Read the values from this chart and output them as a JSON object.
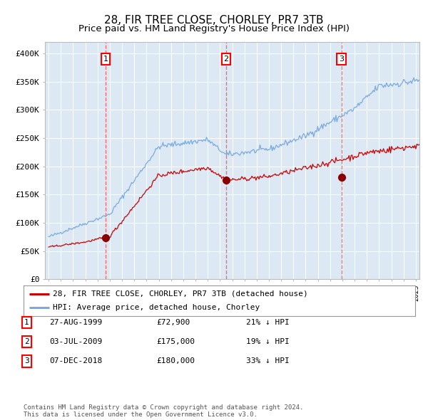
{
  "title": "28, FIR TREE CLOSE, CHORLEY, PR7 3TB",
  "subtitle": "Price paid vs. HM Land Registry's House Price Index (HPI)",
  "title_fontsize": 11,
  "subtitle_fontsize": 9.5,
  "background_color": "#dce9f5",
  "fig_bg_color": "#ffffff",
  "red_line_color": "#cc0000",
  "blue_line_color": "#7aaadd",
  "sale_marker_color": "#880000",
  "vline_color": "#ff5555",
  "ylim": [
    0,
    420000
  ],
  "ytick_labels": [
    "£0",
    "£50K",
    "£100K",
    "£150K",
    "£200K",
    "£250K",
    "£300K",
    "£350K",
    "£400K"
  ],
  "ytick_values": [
    0,
    50000,
    100000,
    150000,
    200000,
    250000,
    300000,
    350000,
    400000
  ],
  "year_start": 1995,
  "year_end": 2025,
  "sale1_year": 1999.65,
  "sale1_price": 72900,
  "sale1_label": "1",
  "sale2_year": 2009.5,
  "sale2_price": 175000,
  "sale2_label": "2",
  "sale3_year": 2018.92,
  "sale3_price": 180000,
  "sale3_label": "3",
  "legend_line1": "28, FIR TREE CLOSE, CHORLEY, PR7 3TB (detached house)",
  "legend_line2": "HPI: Average price, detached house, Chorley",
  "table_row1": [
    "1",
    "27-AUG-1999",
    "£72,900",
    "21% ↓ HPI"
  ],
  "table_row2": [
    "2",
    "03-JUL-2009",
    "£175,000",
    "19% ↓ HPI"
  ],
  "table_row3": [
    "3",
    "07-DEC-2018",
    "£180,000",
    "33% ↓ HPI"
  ],
  "footer": "Contains HM Land Registry data © Crown copyright and database right 2024.\nThis data is licensed under the Open Government Licence v3.0."
}
